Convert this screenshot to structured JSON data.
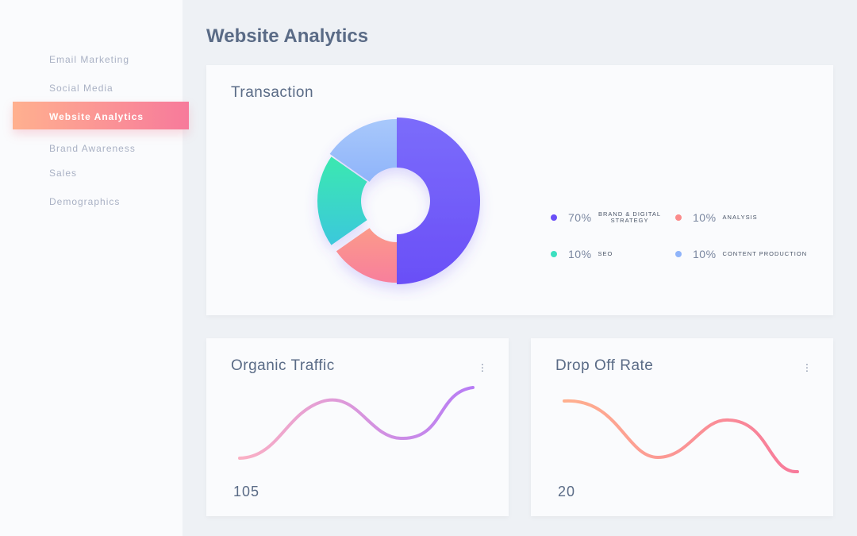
{
  "sidebar": {
    "items": [
      {
        "label": "Email Marketing"
      },
      {
        "label": "Social Media"
      },
      {
        "label": "Website Analytics",
        "active": true
      },
      {
        "label": "Brand Awareness"
      },
      {
        "label": "Sales"
      },
      {
        "label": "Demographics"
      }
    ]
  },
  "page": {
    "title": "Website Analytics"
  },
  "transaction": {
    "title": "Transaction",
    "legend": [
      {
        "pct": "70%",
        "label": "BRAND & DIGITAL STRATEGY",
        "color": "#6a4ff7"
      },
      {
        "pct": "10%",
        "label": "ANALYSIS",
        "color": "#fb8b8b"
      },
      {
        "pct": "10%",
        "label": "SEO",
        "color": "#3be0c0"
      },
      {
        "pct": "10%",
        "label": "CONTENT PRODUCTION",
        "color": "#8fb4fa"
      }
    ]
  },
  "organic": {
    "title": "Organic Traffic",
    "value": "105"
  },
  "dropoff": {
    "title": "Drop Off Rate",
    "value": "20"
  }
}
